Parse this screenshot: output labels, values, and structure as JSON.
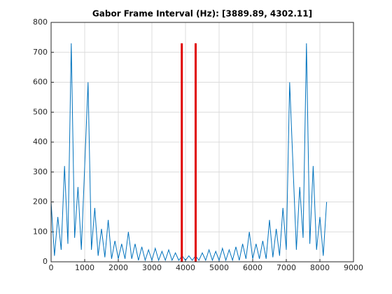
{
  "chart_data": {
    "type": "line",
    "title": "Gabor Frame Interval (Hz): [3889.89, 4302.11]",
    "grid": true,
    "xlim": [
      0,
      9000
    ],
    "xticks": [
      0,
      1000,
      2000,
      3000,
      4000,
      5000,
      6000,
      7000,
      8000,
      9000
    ],
    "ylim": [
      0,
      800
    ],
    "yticks": [
      0,
      100,
      200,
      300,
      400,
      500,
      600,
      700,
      800
    ],
    "series": [
      {
        "color": "#0072bd",
        "width": 1,
        "x": [
          0,
          100,
          200,
          300,
          400,
          500,
          600,
          700,
          800,
          900,
          1000,
          1100,
          1200,
          1300,
          1400,
          1500,
          1600,
          1700,
          1800,
          1900,
          2000,
          2100,
          2200,
          2300,
          2400,
          2500,
          2600,
          2700,
          2800,
          2900,
          3000,
          3100,
          3200,
          3300,
          3400,
          3500,
          3600,
          3700,
          3800,
          3900,
          4000,
          4100,
          4200,
          4300,
          4400,
          4500,
          4600,
          4700,
          4800,
          4900,
          5000,
          5100,
          5200,
          5300,
          5400,
          5500,
          5600,
          5700,
          5800,
          5900,
          6000,
          6100,
          6200,
          6300,
          6400,
          6500,
          6600,
          6700,
          6800,
          6900,
          7000,
          7100,
          7200,
          7300,
          7400,
          7500,
          7600,
          7700,
          7800,
          7900,
          8000,
          8100,
          8200
        ],
        "values": [
          200,
          20,
          150,
          40,
          320,
          60,
          730,
          80,
          250,
          40,
          320,
          600,
          40,
          180,
          20,
          110,
          15,
          140,
          10,
          70,
          10,
          60,
          10,
          100,
          10,
          60,
          5,
          50,
          5,
          40,
          5,
          45,
          5,
          35,
          5,
          40,
          5,
          30,
          5,
          20,
          5,
          20,
          5,
          20,
          5,
          30,
          5,
          40,
          5,
          35,
          5,
          45,
          5,
          40,
          5,
          50,
          5,
          60,
          10,
          100,
          10,
          60,
          10,
          70,
          10,
          140,
          15,
          110,
          20,
          180,
          40,
          600,
          320,
          40,
          250,
          80,
          730,
          60,
          320,
          40,
          150,
          20,
          200
        ]
      },
      {
        "color": "#e00000",
        "width": 3,
        "x": [
          3889.89,
          3889.89
        ],
        "values": [
          0,
          730
        ]
      },
      {
        "color": "#e00000",
        "width": 3,
        "x": [
          4302.11,
          4302.11
        ],
        "values": [
          0,
          730
        ]
      }
    ]
  }
}
